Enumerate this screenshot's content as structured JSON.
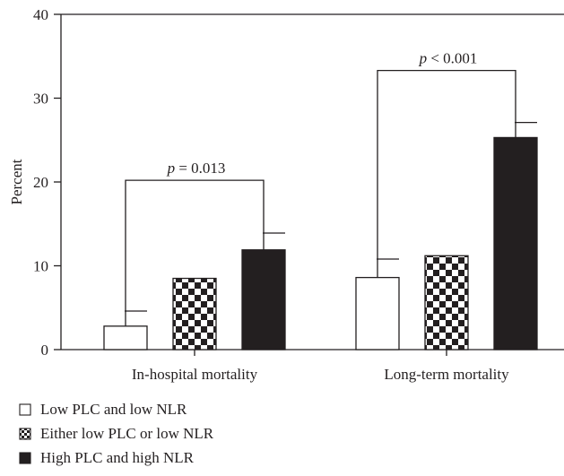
{
  "chart_data": {
    "type": "bar",
    "categories": [
      "In-hospital mortality",
      "Long-term mortality"
    ],
    "series": [
      {
        "name": "Low PLC and low NLR",
        "values": [
          2.8,
          8.6
        ],
        "error_upper": [
          4.6,
          10.8
        ],
        "fill": "#ffffff",
        "pattern": "none"
      },
      {
        "name": "Either low PLC or low NLR",
        "values": [
          8.5,
          11.2
        ],
        "error_upper": null,
        "fill": "#231f20",
        "pattern": "checker"
      },
      {
        "name": "High PLC and high NLR",
        "values": [
          11.9,
          25.3
        ],
        "error_upper": [
          13.9,
          27.1
        ],
        "fill": "#231f20",
        "pattern": "none"
      }
    ],
    "ylabel": "Percent",
    "xlabel": "",
    "ylim": [
      0,
      40
    ],
    "yticks": [
      "0",
      "10",
      "20",
      "30",
      "40"
    ],
    "grid": false,
    "legend_position": "bottom-left",
    "annotations": [
      {
        "group": 0,
        "from_series": 0,
        "to_series": 2,
        "bracket_y": 20.2,
        "label_italic": "p",
        "label_rest": " = 0.013"
      },
      {
        "group": 1,
        "from_series": 0,
        "to_series": 2,
        "bracket_y": 33.3,
        "label_italic": "p",
        "label_rest": " < 0.001"
      }
    ]
  },
  "colors": {
    "ink": "#231f20",
    "background": "#ffffff"
  }
}
